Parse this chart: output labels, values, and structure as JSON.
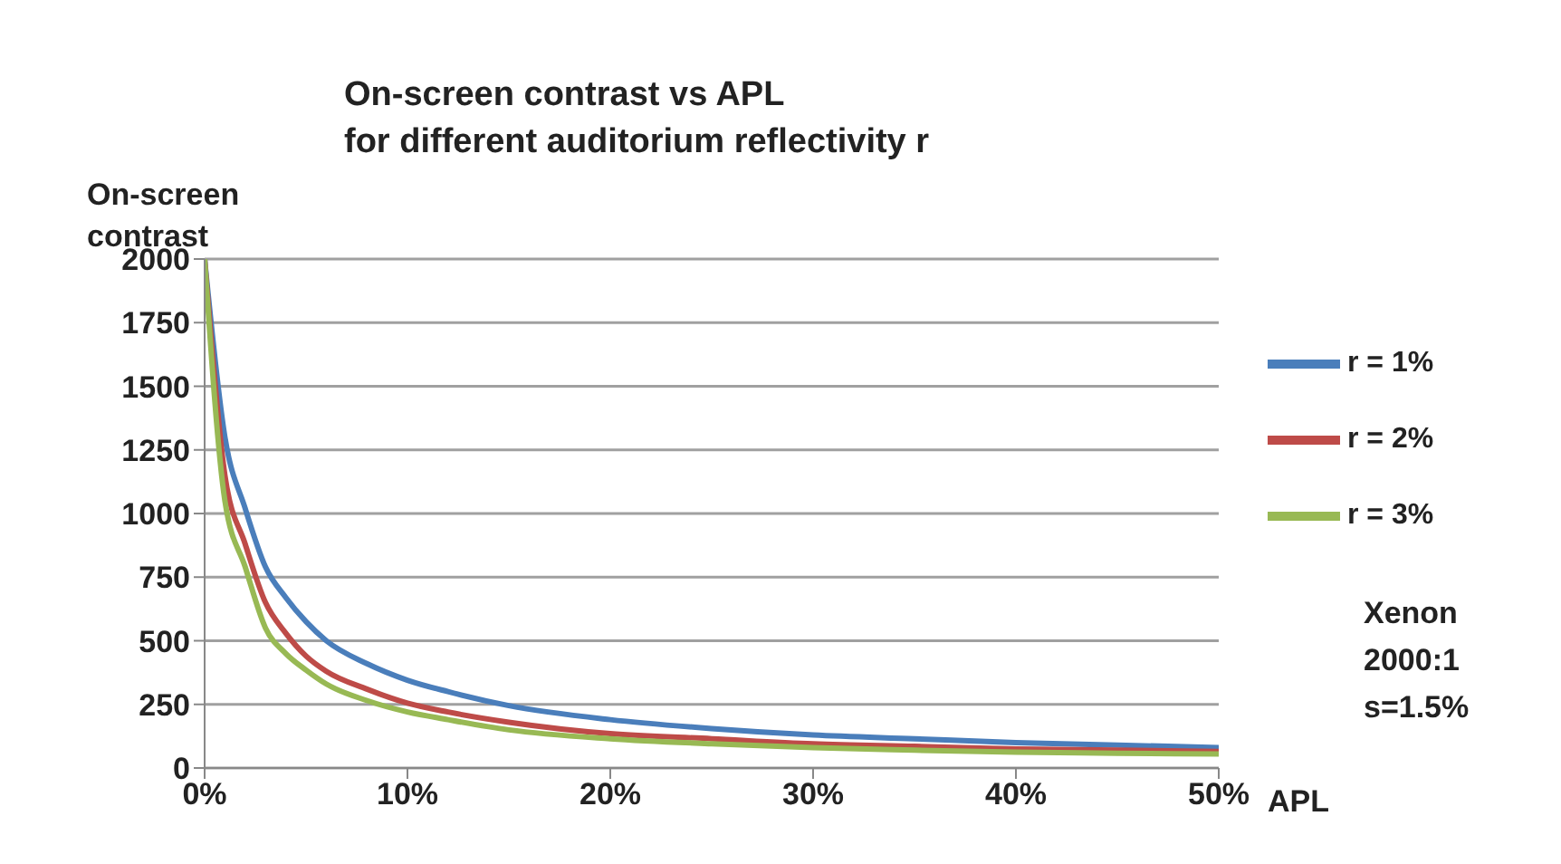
{
  "chart_data": {
    "type": "line",
    "title": "On-screen contrast vs APL\nfor different auditorium reflectivity r",
    "xlabel": "APL",
    "ylabel": "On-screen\ncontrast",
    "annotations": [
      "Xenon\n2000:1\ns=1.5%"
    ],
    "x": [
      0,
      1,
      2,
      3,
      4,
      5,
      6,
      8,
      10,
      12,
      15,
      20,
      25,
      30,
      35,
      40,
      45,
      50
    ],
    "series": [
      {
        "name": "r = 1%",
        "color": "#4a7ebb",
        "values": [
          2000,
          1300,
          1020,
          790,
          670,
          575,
          500,
          410,
          345,
          300,
          245,
          190,
          155,
          130,
          115,
          100,
          90,
          80
        ]
      },
      {
        "name": "r = 2%",
        "color": "#be4b48",
        "values": [
          2000,
          1150,
          880,
          650,
          530,
          440,
          380,
          310,
          255,
          220,
          180,
          135,
          115,
          95,
          85,
          75,
          70,
          65
        ]
      },
      {
        "name": "r = 3%",
        "color": "#98b954",
        "values": [
          2000,
          1050,
          790,
          550,
          450,
          385,
          330,
          265,
          220,
          190,
          150,
          115,
          95,
          80,
          70,
          62,
          58,
          55
        ]
      }
    ],
    "xlim": [
      0,
      50
    ],
    "xticks": [
      {
        "value": 0,
        "label": "0%"
      },
      {
        "value": 10,
        "label": "10%"
      },
      {
        "value": 20,
        "label": "20%"
      },
      {
        "value": 30,
        "label": "30%"
      },
      {
        "value": 40,
        "label": "40%"
      },
      {
        "value": 50,
        "label": "50%"
      }
    ],
    "ylim": [
      0,
      2000
    ],
    "yticks": [
      0,
      250,
      500,
      750,
      1000,
      1250,
      1500,
      1750,
      2000
    ],
    "grid": "y",
    "legend": "right",
    "line_style": "solid"
  }
}
